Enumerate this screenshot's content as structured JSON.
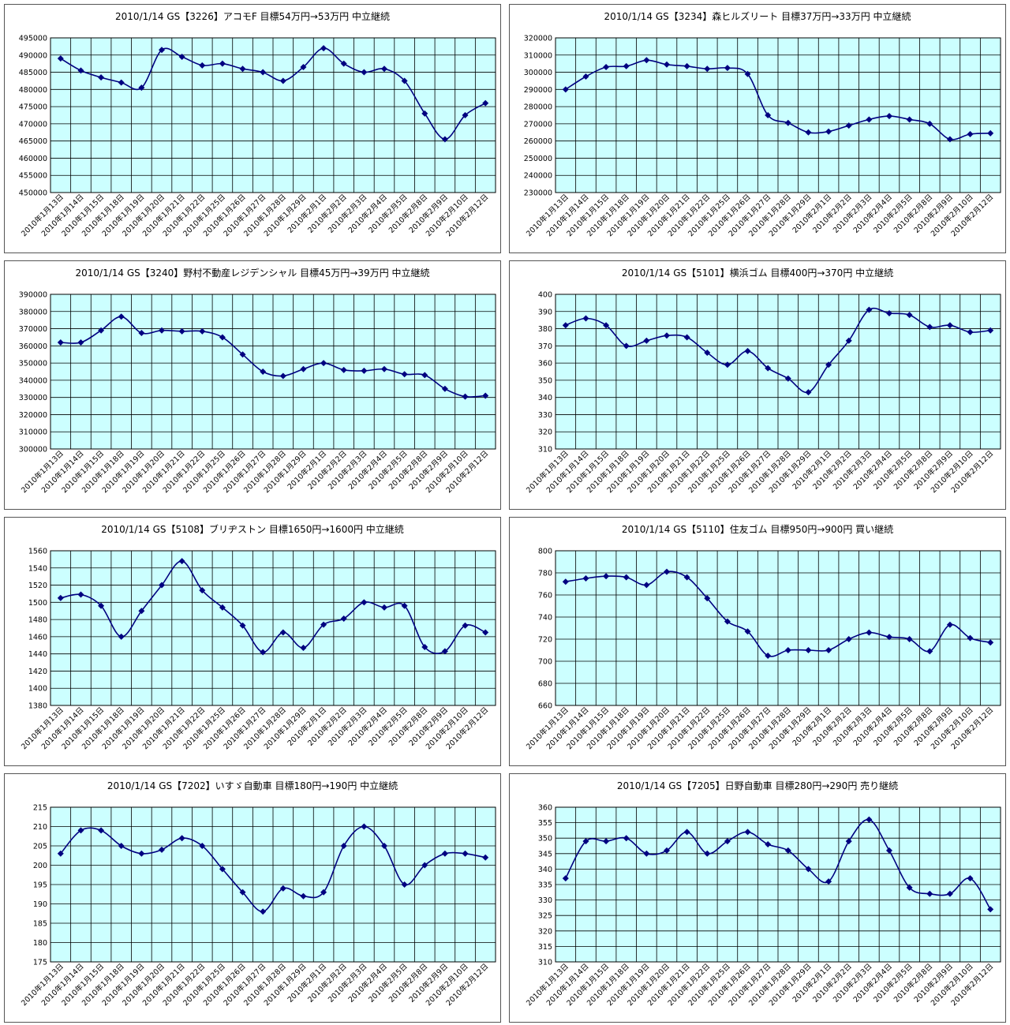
{
  "page": {
    "background": "#ffffff"
  },
  "style": {
    "plot_bg": "#ccffff",
    "grid": "#000000",
    "line": "#000080",
    "marker": "#000080"
  },
  "categories": [
    "2010年1月13日",
    "2010年1月14日",
    "2010年1月15日",
    "2010年1月18日",
    "2010年1月19日",
    "2010年1月20日",
    "2010年1月21日",
    "2010年1月22日",
    "2010年1月25日",
    "2010年1月26日",
    "2010年1月27日",
    "2010年1月28日",
    "2010年1月29日",
    "2010年2月1日",
    "2010年2月2日",
    "2010年2月3日",
    "2010年2月4日",
    "2010年2月5日",
    "2010年2月8日",
    "2010年2月9日",
    "2010年2月10日",
    "2010年2月12日"
  ],
  "chart_data": [
    {
      "type": "line",
      "title": "2010/1/14 GS【3226】アコモF 目標54万円→53万円 中立継続",
      "ylim": [
        450000,
        495000
      ],
      "ystep": 5000,
      "grid": true,
      "values": [
        489000,
        485500,
        483500,
        482000,
        480500,
        491500,
        489500,
        487000,
        487500,
        486000,
        485000,
        482500,
        486500,
        492000,
        487500,
        485000,
        486000,
        482500,
        473000,
        465500,
        472500,
        476000
      ]
    },
    {
      "type": "line",
      "title": "2010/1/14 GS【3234】森ヒルズリート 目標37万円→33万円 中立継続",
      "ylim": [
        230000,
        320000
      ],
      "ystep": 10000,
      "grid": true,
      "values": [
        290000,
        297500,
        303000,
        303500,
        307000,
        304500,
        303500,
        302000,
        302500,
        299000,
        275000,
        270500,
        265000,
        265500,
        269000,
        272500,
        274500,
        272500,
        270000,
        261000,
        264000,
        264500
      ]
    },
    {
      "type": "line",
      "title": "2010/1/14 GS【3240】野村不動産レジデンシャル 目標45万円→39万円 中立継続",
      "ylim": [
        300000,
        390000
      ],
      "ystep": 10000,
      "grid": true,
      "values": [
        362000,
        362000,
        369000,
        377000,
        367500,
        369000,
        368500,
        368500,
        365000,
        355000,
        345000,
        342500,
        346500,
        350000,
        346000,
        345500,
        346500,
        343500,
        343000,
        335000,
        330500,
        331000
      ]
    },
    {
      "type": "line",
      "title": "2010/1/14 GS【5101】横浜ゴム 目標400円→370円 中立継続",
      "ylim": [
        310,
        400
      ],
      "ystep": 10,
      "grid": true,
      "values": [
        382,
        386,
        382,
        370,
        373,
        376,
        375,
        366,
        359,
        367,
        357,
        351,
        343,
        359,
        373,
        391,
        389,
        388,
        381,
        382,
        378,
        379
      ]
    },
    {
      "type": "line",
      "title": "2010/1/14 GS【5108】ブリヂストン 目標1650円→1600円 中立継続",
      "ylim": [
        1380,
        1560
      ],
      "ystep": 20,
      "grid": true,
      "values": [
        1505,
        1509,
        1496,
        1460,
        1490,
        1520,
        1548,
        1514,
        1494,
        1473,
        1442,
        1465,
        1447,
        1474,
        1481,
        1500,
        1494,
        1496,
        1448,
        1443,
        1473,
        1465
      ]
    },
    {
      "type": "line",
      "title": "2010/1/14 GS【5110】住友ゴム 目標950円→900円 買い継続",
      "ylim": [
        660,
        800
      ],
      "ystep": 20,
      "grid": true,
      "values": [
        772,
        775,
        777,
        776,
        769,
        781,
        776,
        757,
        736,
        727,
        705,
        710,
        710,
        710,
        720,
        726,
        722,
        720,
        709,
        733,
        721,
        717
      ]
    },
    {
      "type": "line",
      "title": "2010/1/14 GS【7202】いすゞ自動車 目標180円→190円 中立継続",
      "ylim": [
        175,
        215
      ],
      "ystep": 5,
      "grid": true,
      "values": [
        203,
        209,
        209,
        205,
        203,
        204,
        207,
        205,
        199,
        193,
        188,
        194,
        192,
        193,
        205,
        210,
        205,
        195,
        200,
        203,
        203,
        202
      ]
    },
    {
      "type": "line",
      "title": "2010/1/14 GS【7205】日野自動車 目標280円→290円 売り継続",
      "ylim": [
        310,
        360
      ],
      "ystep": 5,
      "grid": true,
      "values": [
        337,
        349,
        349,
        350,
        345,
        346,
        352,
        345,
        349,
        352,
        348,
        346,
        340,
        336,
        349,
        356,
        346,
        334,
        332,
        332,
        337,
        327
      ]
    }
  ]
}
